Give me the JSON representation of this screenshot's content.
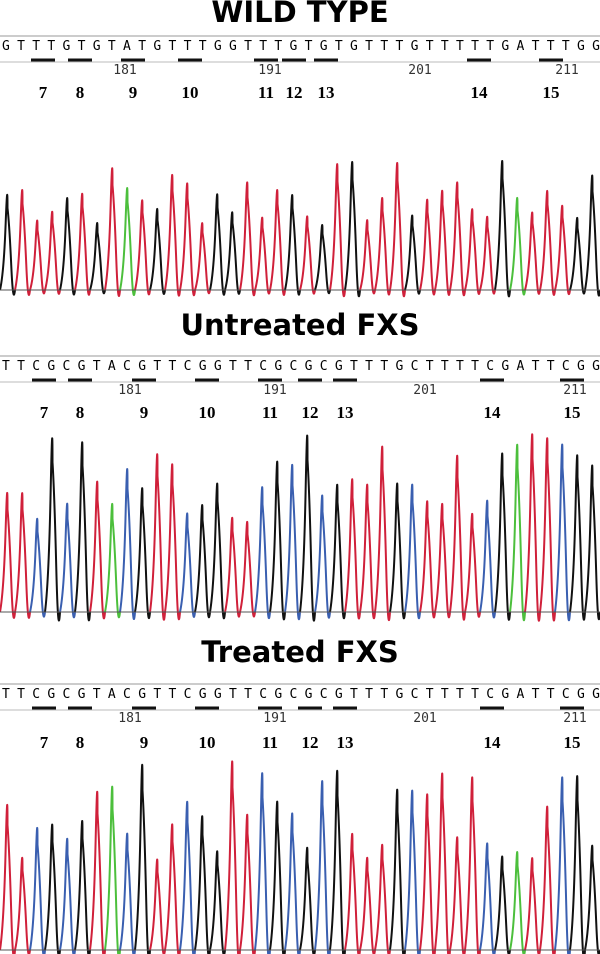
{
  "panels": [
    {
      "title": "WILD TYPE",
      "sequence": "GTTTGTGTATGTTTGGTTTGTGTGTTTGTTTTTGATTTGG",
      "positions": [
        181,
        191,
        201,
        211
      ],
      "sites": [
        7,
        8,
        9,
        10,
        11,
        12,
        13,
        14,
        15
      ]
    },
    {
      "title": "Untreated FXS",
      "sequence": "TTCGCGTACGTTCGGTTCGCGCGTTTGCTTTTCGATTCGG",
      "positions": [
        181,
        191,
        201,
        211
      ],
      "sites": [
        7,
        8,
        9,
        10,
        11,
        12,
        13,
        14,
        15
      ]
    },
    {
      "title": "Treated FXS",
      "sequence": "TTCGCGTACGTTCGGTTCGCGCGTTTGCTTTTCGATTCGG",
      "positions": [
        181,
        191,
        201,
        211
      ],
      "sites": [
        7,
        8,
        9,
        10,
        11,
        12,
        13,
        14,
        15
      ]
    }
  ]
}
